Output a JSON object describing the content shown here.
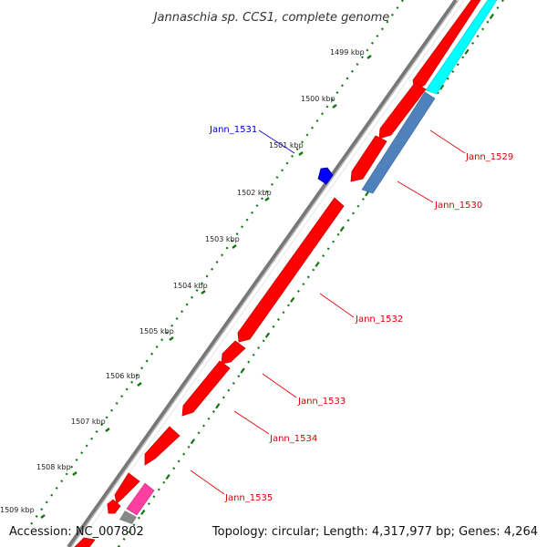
{
  "title": "Jannaschia sp. CCS1, complete genome",
  "footer": {
    "accession": "Accession: NC_007802",
    "summary": "Topology: circular; Length: 4,317,977 bp; Genes: 4,264"
  },
  "scale_labels": [
    "1499 kbp",
    "1500 kbp",
    "1501 kbp",
    "1502 kbp",
    "1503 kbp",
    "1504 kbp",
    "1505 kbp",
    "1506 kbp",
    "1507 kbp",
    "1508 kbp",
    "1509 kbp"
  ],
  "genes": [
    {
      "label": "Jann_1529",
      "color": "#ff0000"
    },
    {
      "label": "Jann_1530",
      "color": "#ff0000"
    },
    {
      "label": "Jann_1531",
      "color": "#0000cc"
    },
    {
      "label": "Jann_1532",
      "color": "#ff0000"
    },
    {
      "label": "Jann_1533",
      "color": "#ff0000"
    },
    {
      "label": "Jann_1534",
      "color": "#ff0000"
    },
    {
      "label": "Jann_1535",
      "color": "#ff0000"
    }
  ],
  "colors": {
    "cds": "#ff0000",
    "cds_dark": "#b80000",
    "rna": "#00ffff",
    "rna2": "#4f81bd",
    "misc": "#ff3fa0",
    "backbone": "#888888",
    "ticks": "#117711"
  }
}
